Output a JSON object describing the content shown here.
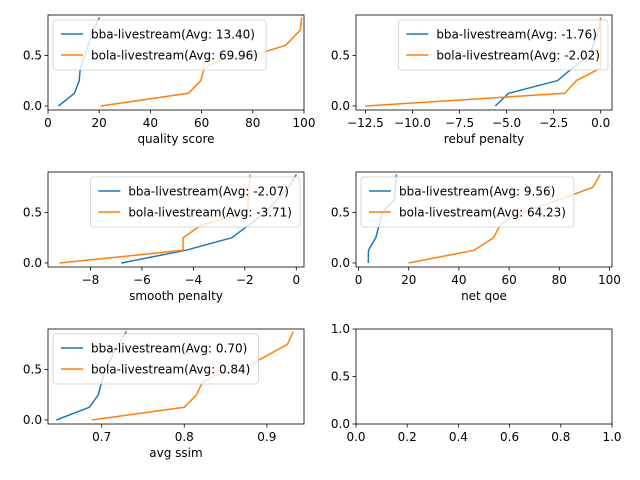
{
  "colors": {
    "bba": "#1f77b4",
    "bola": "#ff7f0e"
  },
  "chart_data": [
    {
      "type": "line",
      "xlabel": "quality score",
      "xlim": [
        0,
        100
      ],
      "ylim": [
        -0.04,
        0.9
      ],
      "xticks": [
        0,
        20,
        40,
        60,
        80,
        100
      ],
      "xtick_labels": [
        "0",
        "20",
        "40",
        "60",
        "80",
        "100"
      ],
      "yticks": [
        0.0,
        0.5
      ],
      "ytick_labels": [
        "0.0",
        "0.5"
      ],
      "legend": "upper-left",
      "series": [
        {
          "name": "bba-livestream(Avg: 13.40)",
          "color": "bba",
          "x": [
            4.1,
            10.3,
            12.2,
            12.6,
            14.4,
            17.5,
            20.1
          ],
          "y": [
            0.0,
            0.125,
            0.25,
            0.375,
            0.5,
            0.75,
            0.875
          ]
        },
        {
          "name": "bola-livestream(Avg: 69.96)",
          "color": "bola",
          "x": [
            20.6,
            54.8,
            59.7,
            61.0,
            66.8,
            80.0,
            92.8,
            98.5,
            99.1
          ],
          "y": [
            0.0,
            0.125,
            0.25,
            0.375,
            0.45,
            0.5,
            0.6,
            0.75,
            0.875
          ]
        }
      ]
    },
    {
      "type": "line",
      "xlabel": "rebuf penalty",
      "xlim": [
        -13.0,
        0.6
      ],
      "ylim": [
        -0.04,
        0.9
      ],
      "xticks": [
        -12.5,
        -10.0,
        -7.5,
        -5.0,
        -2.5,
        0.0
      ],
      "xtick_labels": [
        "−12.5",
        "−10.0",
        "−7.5",
        "−5.0",
        "−2.5",
        "0.0"
      ],
      "yticks": [
        0.0,
        0.5
      ],
      "ytick_labels": [
        "0.0",
        "0.5"
      ],
      "legend": "upper-right",
      "series": [
        {
          "name": "bba-livestream(Avg: -1.76)",
          "color": "bba",
          "x": [
            -5.6,
            -4.9,
            -2.3,
            -1.5,
            -0.6,
            -0.1,
            0.0
          ],
          "y": [
            0.0,
            0.125,
            0.25,
            0.375,
            0.5,
            0.75,
            0.875
          ]
        },
        {
          "name": "bola-livestream(Avg: -2.02)",
          "color": "bola",
          "x": [
            -12.5,
            -1.9,
            -1.3,
            0.0,
            0.0
          ],
          "y": [
            0.0,
            0.125,
            0.25,
            0.375,
            0.875
          ]
        }
      ]
    },
    {
      "type": "line",
      "xlabel": "smooth penalty",
      "xlim": [
        -9.65,
        0.3
      ],
      "ylim": [
        -0.04,
        0.9
      ],
      "xticks": [
        -8,
        -6,
        -4,
        -2,
        0
      ],
      "xtick_labels": [
        "−8",
        "−6",
        "−4",
        "−2",
        "0"
      ],
      "yticks": [
        0.0,
        0.5
      ],
      "ytick_labels": [
        "0.0",
        "0.5"
      ],
      "legend": "upper-right",
      "series": [
        {
          "name": "bba-livestream(Avg: -2.07)",
          "color": "bba",
          "x": [
            -6.8,
            -4.3,
            -2.5,
            -1.2,
            -0.3,
            0.0
          ],
          "y": [
            0.0,
            0.125,
            0.25,
            0.5,
            0.75,
            0.875
          ]
        },
        {
          "name": "bola-livestream(Avg: -3.71)",
          "color": "bola",
          "x": [
            -9.2,
            -4.4,
            -4.4,
            -3.7,
            -1.9,
            -1.8
          ],
          "y": [
            0.0,
            0.125,
            0.25,
            0.375,
            0.5,
            0.875
          ]
        }
      ]
    },
    {
      "type": "line",
      "xlabel": "net qoe",
      "xlim": [
        -1,
        101
      ],
      "ylim": [
        -0.04,
        0.9
      ],
      "xticks": [
        0,
        20,
        40,
        60,
        80,
        100
      ],
      "xtick_labels": [
        "0",
        "20",
        "40",
        "60",
        "80",
        "100"
      ],
      "yticks": [
        0.0,
        0.5
      ],
      "ytick_labels": [
        "0.0",
        "0.5"
      ],
      "legend": "upper-left",
      "series": [
        {
          "name": "bba-livestream(Avg: 9.56)",
          "color": "bba",
          "x": [
            3.9,
            4.0,
            6.9,
            9.5,
            14.3,
            15.1
          ],
          "y": [
            0.0,
            0.125,
            0.25,
            0.5,
            0.625,
            0.875
          ]
        },
        {
          "name": "bola-livestream(Avg: 64.23)",
          "color": "bola",
          "x": [
            19.9,
            46.0,
            53.8,
            56.4,
            60.5,
            65.0,
            80.0,
            93.4,
            96.3
          ],
          "y": [
            0.0,
            0.125,
            0.25,
            0.375,
            0.45,
            0.5,
            0.625,
            0.75,
            0.875
          ]
        }
      ]
    },
    {
      "type": "line",
      "xlabel": "avg ssim",
      "xlim": [
        0.635,
        0.945
      ],
      "ylim": [
        -0.04,
        0.9
      ],
      "xticks": [
        0.7,
        0.8,
        0.9
      ],
      "xtick_labels": [
        "0.7",
        "0.8",
        "0.9"
      ],
      "yticks": [
        0.0,
        0.5
      ],
      "ytick_labels": [
        "0.0",
        "0.5"
      ],
      "legend": "upper-left",
      "series": [
        {
          "name": "bba-livestream(Avg: 0.70)",
          "color": "bba",
          "x": [
            0.645,
            0.685,
            0.696,
            0.7,
            0.705,
            0.72,
            0.73
          ],
          "y": [
            0.0,
            0.125,
            0.25,
            0.375,
            0.5,
            0.75,
            0.875
          ]
        },
        {
          "name": "bola-livestream(Avg: 0.84)",
          "color": "bola",
          "x": [
            0.688,
            0.8,
            0.815,
            0.822,
            0.84,
            0.87,
            0.925,
            0.932
          ],
          "y": [
            0.0,
            0.125,
            0.25,
            0.375,
            0.45,
            0.5,
            0.75,
            0.875
          ]
        }
      ]
    },
    {
      "type": "line",
      "xlabel": "",
      "xlim": [
        0,
        1
      ],
      "ylim": [
        0,
        1
      ],
      "xticks": [
        0,
        0.2,
        0.4,
        0.6,
        0.8,
        1.0
      ],
      "xtick_labels": [
        "0.0",
        "0.2",
        "0.4",
        "0.6",
        "0.8",
        "1.0"
      ],
      "yticks": [
        0,
        0.5,
        1.0
      ],
      "ytick_labels": [
        "0.0",
        "0.5",
        "1.0"
      ],
      "legend": "none",
      "series": []
    }
  ]
}
